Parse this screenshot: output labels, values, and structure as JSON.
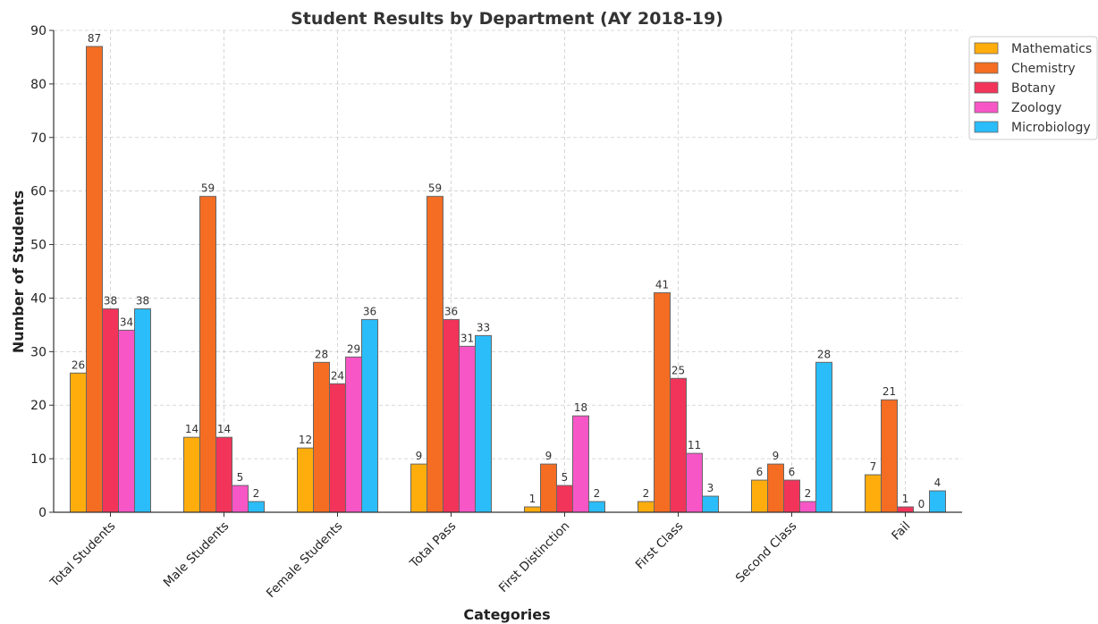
{
  "chart_data": {
    "type": "bar",
    "title": "Student Results by Department (AY 2018-19)",
    "xlabel": "Categories",
    "ylabel": "Number of Students",
    "ylim": [
      0,
      90
    ],
    "yticks": [
      "0",
      "10",
      "20",
      "30",
      "40",
      "50",
      "60",
      "70",
      "80",
      "90"
    ],
    "grid": true,
    "legend_position": "top-right",
    "categories": [
      "Total Students",
      "Male Students",
      "Female Students",
      "Total Pass",
      "First Distinction",
      "First Class",
      "Second Class",
      "Fail"
    ],
    "series": [
      {
        "name": "Mathematics",
        "color": "#ffad0d",
        "values": [
          26,
          14,
          12,
          9,
          1,
          2,
          6,
          7
        ]
      },
      {
        "name": "Chemistry",
        "color": "#f46d22",
        "values": [
          87,
          59,
          28,
          59,
          9,
          41,
          9,
          21
        ]
      },
      {
        "name": "Botany",
        "color": "#f2345a",
        "values": [
          38,
          14,
          24,
          36,
          5,
          25,
          6,
          1
        ]
      },
      {
        "name": "Zoology",
        "color": "#f756c6",
        "values": [
          34,
          5,
          29,
          31,
          18,
          11,
          2,
          0
        ]
      },
      {
        "name": "Microbiology",
        "color": "#2bbdf9",
        "values": [
          38,
          2,
          36,
          33,
          2,
          3,
          28,
          4
        ]
      }
    ]
  }
}
